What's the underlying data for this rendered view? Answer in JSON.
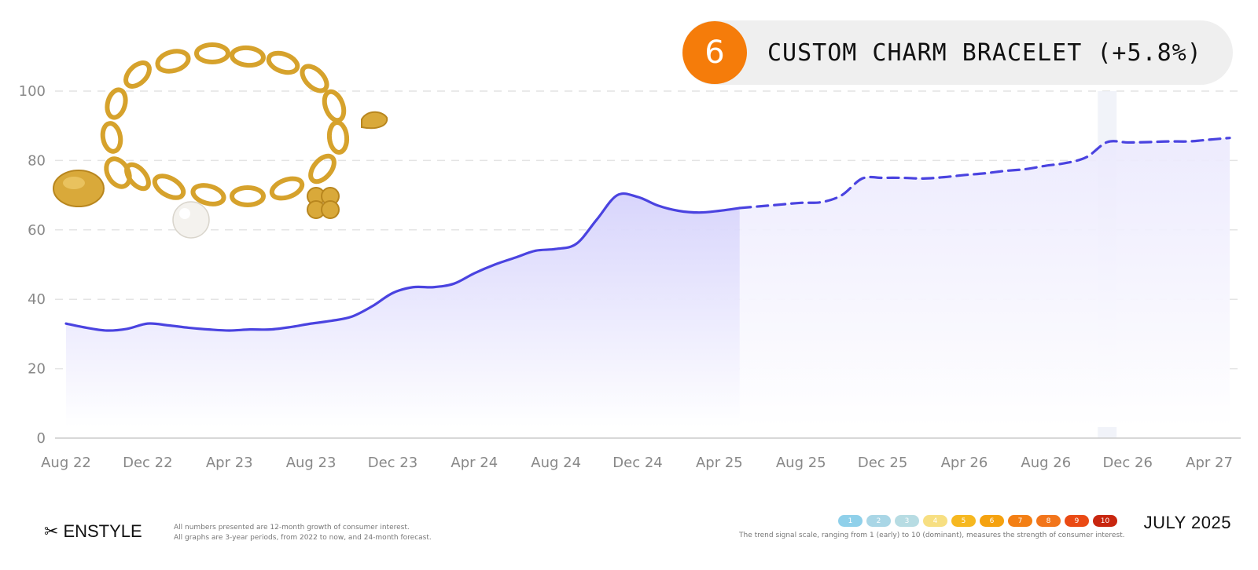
{
  "badge": {
    "rank": "6",
    "title": "CUSTOM CHARM BRACELET (+5.8%)",
    "color": "#f57c0a"
  },
  "chart_data": {
    "type": "area",
    "title": "",
    "xlabel": "",
    "ylabel": "",
    "ylim": [
      0,
      100
    ],
    "yticks": [
      "0",
      "20",
      "40",
      "60",
      "80",
      "100"
    ],
    "xticks": [
      "Aug 22",
      "Dec 22",
      "Apr 23",
      "Aug 23",
      "Dec 23",
      "Apr 24",
      "Aug 24",
      "Dec 24",
      "Apr 25",
      "Aug 25",
      "Dec 25",
      "Apr 26",
      "Aug 26",
      "Dec 26",
      "Apr 27"
    ],
    "grid": true,
    "line_color": "#4a43e0",
    "fill_color": "#dcdafd",
    "series": [
      {
        "style": "solid",
        "x": [
          "2022-08",
          "2022-09",
          "2022-10",
          "2022-11",
          "2022-12",
          "2023-01",
          "2023-02",
          "2023-03",
          "2023-04",
          "2023-05",
          "2023-06",
          "2023-07",
          "2023-08",
          "2023-09",
          "2023-10",
          "2023-11",
          "2023-12",
          "2024-01",
          "2024-02",
          "2024-03",
          "2024-04",
          "2024-05",
          "2024-06",
          "2024-07",
          "2024-08",
          "2024-09",
          "2024-10",
          "2024-11",
          "2024-12",
          "2025-01",
          "2025-02",
          "2025-03",
          "2025-04",
          "2025-05"
        ],
        "values": [
          33,
          31.8,
          31,
          31.5,
          33,
          32.5,
          31.8,
          31.3,
          31,
          31.3,
          31.3,
          32,
          33,
          33.8,
          35,
          38,
          41.8,
          43.5,
          43.5,
          44.5,
          47.5,
          50,
          52,
          54,
          54.5,
          56,
          63,
          70,
          69.5,
          67,
          65.5,
          65,
          65.5,
          66.3
        ]
      },
      {
        "style": "dashed",
        "x": [
          "2025-05",
          "2025-06",
          "2025-07",
          "2025-08",
          "2025-09",
          "2025-10",
          "2025-11",
          "2025-12",
          "2026-01",
          "2026-02",
          "2026-03",
          "2026-04",
          "2026-05",
          "2026-06",
          "2026-07",
          "2026-08",
          "2026-09",
          "2026-10",
          "2026-11",
          "2026-12",
          "2027-01",
          "2027-02",
          "2027-03",
          "2027-04",
          "2027-05"
        ],
        "values": [
          66.3,
          66.8,
          67.3,
          67.8,
          68,
          70,
          74.8,
          75,
          75,
          74.8,
          75.2,
          75.8,
          76.3,
          77,
          77.5,
          78.5,
          79.3,
          81,
          85.3,
          85.2,
          85.3,
          85.5,
          85.5,
          86,
          86.5
        ]
      }
    ],
    "highlight_month": "2026-11"
  },
  "footer": {
    "brand": "ENSTYLE",
    "brand_icon": "scissors-icon",
    "note_line1": "All numbers presented are 12-month growth of consumer interest.",
    "note_line2": "All graphs are 3-year periods, from 2022 to now, and 24-month forecast.",
    "scale": [
      {
        "label": "1",
        "color": "#8fd0ea"
      },
      {
        "label": "2",
        "color": "#a9d6e6"
      },
      {
        "label": "3",
        "color": "#b7dce3"
      },
      {
        "label": "4",
        "color": "#f7df82"
      },
      {
        "label": "5",
        "color": "#f6b820"
      },
      {
        "label": "6",
        "color": "#f5a20f"
      },
      {
        "label": "7",
        "color": "#f37f14"
      },
      {
        "label": "8",
        "color": "#f2751b"
      },
      {
        "label": "9",
        "color": "#ea4a14"
      },
      {
        "label": "10",
        "color": "#c8260f"
      }
    ],
    "scale_note": "The trend signal scale, ranging from 1 (early) to 10 (dominant), measures the strength of consumer interest.",
    "date": "JULY 2025"
  }
}
